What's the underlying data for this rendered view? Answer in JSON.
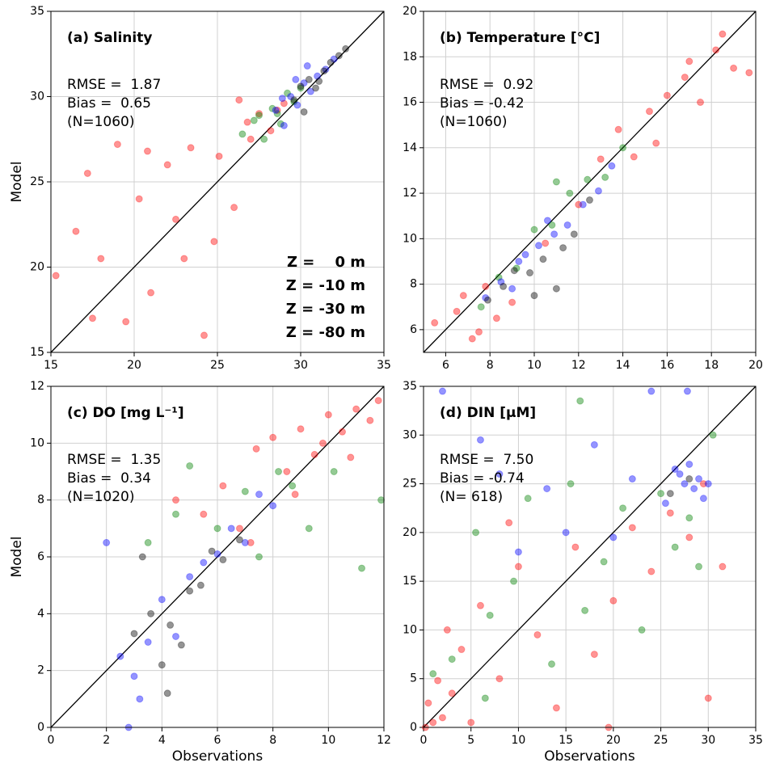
{
  "chart_data": [
    {
      "type": "scatter",
      "title": "(a) Salinity",
      "ylabel": "Model",
      "annotations": [
        "RMSE =  1.87",
        "Bias =  0.65",
        "(N=1060)"
      ],
      "xlim": [
        15,
        35
      ],
      "ylim": [
        15,
        35
      ],
      "xticks": [
        15,
        20,
        25,
        30,
        35
      ],
      "yticks": [
        15,
        20,
        25,
        30,
        35
      ],
      "grid": true,
      "legend": "lower right",
      "series": [
        {
          "name": "Z =    0 m",
          "color": "#ff0000",
          "x": [
            15.3,
            16.5,
            17.2,
            18.0,
            19.5,
            20.3,
            21.0,
            22.5,
            23.4,
            24.2,
            25.1,
            26.0,
            26.8,
            27.5,
            28.2,
            29.0,
            24.8,
            22.0,
            19.0,
            17.5,
            27.0,
            26.3,
            23.0,
            20.8,
            28.6
          ],
          "values": [
            19.5,
            22.1,
            25.5,
            20.5,
            16.8,
            24.0,
            18.5,
            22.8,
            27.0,
            16.0,
            26.5,
            23.5,
            28.5,
            29.0,
            28.0,
            29.6,
            21.5,
            26.0,
            27.2,
            17.0,
            27.5,
            29.8,
            20.5,
            26.8,
            29.2
          ]
        },
        {
          "name": "Z = -10 m",
          "color": "#008000",
          "x": [
            26.5,
            27.2,
            27.8,
            28.3,
            28.8,
            29.2,
            29.6,
            30.0,
            27.5,
            28.6
          ],
          "values": [
            27.8,
            28.6,
            27.5,
            29.3,
            28.4,
            30.2,
            29.7,
            30.5,
            28.9,
            29.0
          ]
        },
        {
          "name": "Z = -30 m",
          "color": "#0000ff",
          "x": [
            28.5,
            29.0,
            29.4,
            29.8,
            30.2,
            30.6,
            31.0,
            31.5,
            32.0,
            28.9,
            29.7,
            30.4
          ],
          "values": [
            29.2,
            28.3,
            30.0,
            29.5,
            30.8,
            30.3,
            31.2,
            31.6,
            32.2,
            29.9,
            31.0,
            31.8
          ]
        },
        {
          "name": "Z = -80 m",
          "color": "#000000",
          "x": [
            29.6,
            30.0,
            30.5,
            30.9,
            31.4,
            31.8,
            32.3,
            32.7,
            30.2,
            31.1
          ],
          "values": [
            29.8,
            30.6,
            31.0,
            30.5,
            31.5,
            32.0,
            32.4,
            32.8,
            29.1,
            30.9
          ]
        }
      ]
    },
    {
      "type": "scatter",
      "title": "(b) Temperature [°C]",
      "annotations": [
        "RMSE =  0.92",
        "Bias = -0.42",
        "(N=1060)"
      ],
      "xlim": [
        5,
        20
      ],
      "ylim": [
        5,
        20
      ],
      "xticks": [
        6,
        8,
        10,
        12,
        14,
        16,
        18,
        20
      ],
      "yticks": [
        6,
        8,
        10,
        12,
        14,
        16,
        18,
        20
      ],
      "grid": true,
      "series": [
        {
          "color": "#ff0000",
          "x": [
            5.5,
            6.5,
            7.2,
            7.8,
            8.3,
            9.0,
            10.5,
            12.0,
            13.0,
            13.8,
            14.5,
            15.2,
            16.0,
            16.8,
            17.5,
            18.2,
            19.0,
            19.7,
            7.5,
            6.8,
            15.5,
            17.0,
            18.5
          ],
          "values": [
            6.3,
            6.8,
            5.6,
            7.9,
            6.5,
            7.2,
            9.8,
            11.5,
            13.5,
            14.8,
            13.6,
            15.6,
            16.3,
            17.1,
            16.0,
            18.3,
            17.5,
            17.3,
            5.9,
            7.5,
            14.2,
            17.8,
            19.0
          ]
        },
        {
          "color": "#008000",
          "x": [
            7.6,
            8.4,
            9.2,
            10.0,
            10.8,
            11.6,
            12.4,
            13.2,
            14.0,
            11.0
          ],
          "values": [
            7.0,
            8.3,
            8.7,
            10.4,
            10.6,
            12.0,
            12.6,
            12.7,
            14.0,
            12.5
          ]
        },
        {
          "color": "#0000ff",
          "x": [
            7.8,
            8.5,
            9.0,
            9.6,
            10.2,
            10.9,
            11.5,
            12.2,
            12.9,
            13.5,
            9.3,
            10.6
          ],
          "values": [
            7.4,
            8.1,
            7.8,
            9.3,
            9.7,
            10.2,
            10.6,
            11.5,
            12.1,
            13.2,
            9.0,
            10.8
          ]
        },
        {
          "color": "#000000",
          "x": [
            7.9,
            8.6,
            9.1,
            9.8,
            10.4,
            11.0,
            11.8,
            12.5,
            10.0,
            11.3
          ],
          "values": [
            7.3,
            7.9,
            8.6,
            8.5,
            9.1,
            7.8,
            10.2,
            11.7,
            7.5,
            9.6
          ]
        }
      ]
    },
    {
      "type": "scatter",
      "title": "(c) DO [mg L⁻¹]",
      "xlabel": "Observations",
      "ylabel": "Model",
      "annotations": [
        "RMSE =  1.35",
        "Bias =  0.34",
        "(N=1020)"
      ],
      "xlim": [
        0,
        12
      ],
      "ylim": [
        0,
        12
      ],
      "xticks": [
        0,
        2,
        4,
        6,
        8,
        10,
        12
      ],
      "yticks": [
        0,
        2,
        4,
        6,
        8,
        10,
        12
      ],
      "grid": true,
      "series": [
        {
          "color": "#ff0000",
          "x": [
            4.5,
            5.5,
            6.2,
            6.8,
            7.4,
            8.0,
            8.5,
            9.0,
            9.5,
            10.0,
            10.5,
            11.0,
            11.5,
            11.8,
            8.8,
            9.8,
            7.2,
            10.8
          ],
          "values": [
            8.0,
            7.5,
            8.5,
            7.0,
            9.8,
            10.2,
            9.0,
            10.5,
            9.6,
            11.0,
            10.4,
            11.2,
            10.8,
            11.5,
            8.2,
            10.0,
            6.5,
            9.5
          ]
        },
        {
          "color": "#008000",
          "x": [
            3.5,
            5.0,
            6.0,
            7.0,
            7.5,
            8.2,
            8.7,
            9.3,
            10.2,
            11.2,
            11.9,
            4.5
          ],
          "values": [
            6.5,
            9.2,
            7.0,
            8.3,
            6.0,
            9.0,
            8.5,
            7.0,
            9.0,
            5.6,
            8.0,
            7.5
          ]
        },
        {
          "color": "#0000ff",
          "x": [
            2.0,
            2.5,
            3.0,
            3.5,
            4.0,
            4.5,
            5.0,
            5.5,
            6.0,
            6.5,
            7.0,
            7.5,
            8.0,
            2.8,
            3.2
          ],
          "values": [
            6.5,
            2.5,
            1.8,
            3.0,
            4.5,
            3.2,
            5.3,
            5.8,
            6.1,
            7.0,
            6.5,
            8.2,
            7.8,
            0.0,
            1.0
          ]
        },
        {
          "color": "#000000",
          "x": [
            3.0,
            3.6,
            4.0,
            4.3,
            4.7,
            5.0,
            5.4,
            5.8,
            6.2,
            6.8,
            4.2,
            3.3
          ],
          "values": [
            3.3,
            4.0,
            2.2,
            3.6,
            2.9,
            4.8,
            5.0,
            6.2,
            5.9,
            6.6,
            1.2,
            6.0
          ]
        }
      ]
    },
    {
      "type": "scatter",
      "title": "(d) DIN [μM]",
      "xlabel": "Observations",
      "annotations": [
        "RMSE =  7.50",
        "Bias = -0.74",
        "(N= 618)"
      ],
      "xlim": [
        0,
        35
      ],
      "ylim": [
        0,
        35
      ],
      "xticks": [
        0,
        5,
        10,
        15,
        20,
        25,
        30,
        35
      ],
      "yticks": [
        0,
        5,
        10,
        15,
        20,
        25,
        30,
        35
      ],
      "grid": true,
      "series": [
        {
          "color": "#ff0000",
          "x": [
            0.2,
            0.5,
            1.0,
            1.5,
            2.0,
            3.0,
            4.0,
            5.0,
            6.0,
            8.0,
            10.0,
            12.0,
            14.0,
            16.0,
            18.0,
            20.0,
            22.0,
            24.0,
            26.0,
            28.0,
            29.5,
            30.0,
            31.5,
            2.5,
            9.0,
            19.5
          ],
          "values": [
            0.0,
            2.5,
            0.5,
            4.8,
            1.0,
            3.5,
            8.0,
            0.5,
            12.5,
            5.0,
            16.5,
            9.5,
            2.0,
            18.5,
            7.5,
            13.0,
            20.5,
            16.0,
            22.0,
            19.5,
            25.0,
            3.0,
            16.5,
            10.0,
            21.0,
            0.0
          ]
        },
        {
          "color": "#008000",
          "x": [
            1.0,
            3.0,
            5.5,
            7.0,
            9.5,
            11.0,
            13.5,
            15.5,
            17.0,
            19.0,
            21.0,
            23.0,
            25.0,
            26.5,
            28.0,
            29.0,
            30.5,
            16.5,
            6.5
          ],
          "values": [
            5.5,
            7.0,
            20.0,
            11.5,
            15.0,
            23.5,
            6.5,
            25.0,
            12.0,
            17.0,
            22.5,
            10.0,
            24.0,
            18.5,
            21.5,
            16.5,
            30.0,
            33.5,
            3.0
          ]
        },
        {
          "color": "#0000ff",
          "x": [
            2.0,
            6.0,
            10.0,
            13.0,
            15.0,
            18.0,
            20.0,
            22.0,
            24.0,
            25.5,
            26.5,
            27.0,
            27.5,
            28.0,
            28.5,
            29.0,
            29.5,
            30.0,
            27.8,
            8.0
          ],
          "values": [
            34.5,
            29.5,
            18.0,
            24.5,
            20.0,
            29.0,
            19.5,
            25.5,
            34.5,
            23.0,
            26.5,
            26.0,
            25.0,
            27.0,
            24.5,
            25.5,
            23.5,
            25.0,
            34.5,
            26.0
          ]
        },
        {
          "color": "#000000",
          "x": [
            26.0,
            28.0
          ],
          "values": [
            24.0,
            25.5
          ]
        }
      ]
    }
  ]
}
